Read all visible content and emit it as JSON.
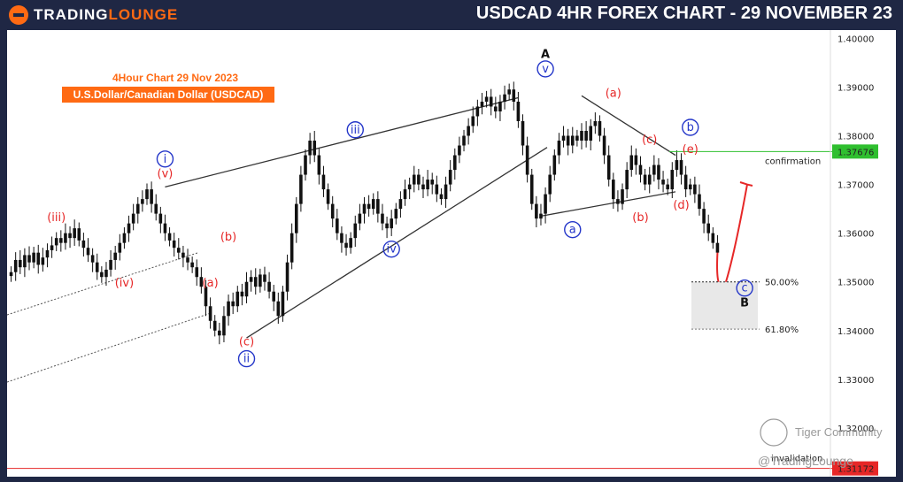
{
  "header": {
    "logo_left": "TRADING",
    "logo_right": "LOUNGE",
    "title": "USDCAD 4HR FOREX CHART - 29 NOVEMBER 23"
  },
  "annotation": {
    "line1": "4Hour Chart 29 Nov 2023",
    "line2": "U.S.Dollar/Canadian Dollar (USDCAD)"
  },
  "levels": {
    "confirmation_label": "confirmation",
    "confirmation_value": "1.37676",
    "fib_50": "50.00%",
    "fib_618": "61.80%",
    "invalidation_label": "invalidation",
    "invalidation_value": "1.31172"
  },
  "watermark": {
    "community": "Tiger Community",
    "handle": "@TradingLounge"
  },
  "colors": {
    "red": "#e62727",
    "blue": "#2436c9",
    "green": "#2fbf2f",
    "orange": "#ff6a13",
    "candle": "#111111"
  },
  "chart_data": {
    "type": "line",
    "title": "USDCAD 4HR FOREX CHART - 29 NOVEMBER 23",
    "ylim": [
      1.31,
      1.4
    ],
    "y_ticks": [
      "1.40000",
      "1.39000",
      "1.38000",
      "1.37000",
      "1.36000",
      "1.35000",
      "1.34000",
      "1.33000",
      "1.32000"
    ],
    "series": [
      {
        "values": [
          1.352,
          1.3545,
          1.353,
          1.3555,
          1.354,
          1.356,
          1.3535,
          1.355,
          1.3565,
          1.3575,
          1.359,
          1.358,
          1.36,
          1.359,
          1.361,
          1.3585,
          1.357,
          1.3555,
          1.354,
          1.352,
          1.351,
          1.3525,
          1.3545,
          1.356,
          1.358,
          1.36,
          1.362,
          1.364,
          1.366,
          1.367,
          1.369,
          1.366,
          1.364,
          1.362,
          1.36,
          1.3585,
          1.357,
          1.356,
          1.355,
          1.354,
          1.353,
          1.351,
          1.349,
          1.345,
          1.342,
          1.34,
          1.339,
          1.343,
          1.346,
          1.345,
          1.348,
          1.347,
          1.35,
          1.351,
          1.349,
          1.3515,
          1.35,
          1.348,
          1.346,
          1.343,
          1.348,
          1.354,
          1.36,
          1.366,
          1.372,
          1.376,
          1.379,
          1.376,
          1.372,
          1.369,
          1.366,
          1.363,
          1.36,
          1.358,
          1.357,
          1.359,
          1.362,
          1.364,
          1.366,
          1.365,
          1.367,
          1.364,
          1.362,
          1.361,
          1.363,
          1.365,
          1.367,
          1.369,
          1.37,
          1.372,
          1.37,
          1.369,
          1.371,
          1.37,
          1.368,
          1.367,
          1.37,
          1.373,
          1.376,
          1.378,
          1.38,
          1.382,
          1.384,
          1.386,
          1.387,
          1.388,
          1.386,
          1.385,
          1.387,
          1.3885,
          1.3895,
          1.387,
          1.383,
          1.378,
          1.372,
          1.366,
          1.363,
          1.364,
          1.368,
          1.372,
          1.376,
          1.379,
          1.38,
          1.378,
          1.38,
          1.379,
          1.381,
          1.379,
          1.382,
          1.383,
          1.38,
          1.376,
          1.371,
          1.367,
          1.366,
          1.369,
          1.373,
          1.376,
          1.374,
          1.372,
          1.37,
          1.372,
          1.374,
          1.371,
          1.37,
          1.369,
          1.373,
          1.375,
          1.372,
          1.369,
          1.37,
          1.368,
          1.365,
          1.362,
          1.36,
          1.358,
          1.356
        ]
      }
    ],
    "projection": [
      1.356,
      1.3495,
      1.351,
      1.356,
      1.364,
      1.37
    ],
    "wave_labels": [
      {
        "text": "(iii)",
        "color": "red",
        "price": 1.3625,
        "bar": 10
      },
      {
        "text": "(iv)",
        "color": "red",
        "price": 1.349,
        "bar": 25
      },
      {
        "text": "(v)",
        "color": "red",
        "price": 1.3715,
        "bar": 34
      },
      {
        "text": "i",
        "color": "blue",
        "price": 1.3745,
        "bar": 34,
        "circled": true
      },
      {
        "text": "(a)",
        "color": "red",
        "price": 1.349,
        "bar": 44
      },
      {
        "text": "(b)",
        "color": "red",
        "price": 1.3585,
        "bar": 48
      },
      {
        "text": "(c)",
        "color": "red",
        "price": 1.337,
        "bar": 52
      },
      {
        "text": "ii",
        "color": "blue",
        "price": 1.3335,
        "bar": 52,
        "circled": true
      },
      {
        "text": "iii",
        "color": "blue",
        "price": 1.3805,
        "bar": 76,
        "circled": true
      },
      {
        "text": "iv",
        "color": "blue",
        "price": 1.356,
        "bar": 84,
        "circled": true
      },
      {
        "text": "v",
        "color": "blue",
        "price": 1.393,
        "bar": 118,
        "circled": true
      },
      {
        "text": "A",
        "color": "black",
        "price": 1.396,
        "bar": 118
      },
      {
        "text": "(a)",
        "color": "red",
        "price": 1.388,
        "bar": 133
      },
      {
        "text": "a",
        "color": "blue",
        "price": 1.36,
        "bar": 124,
        "circled": true
      },
      {
        "text": "(b)",
        "color": "red",
        "price": 1.3625,
        "bar": 139
      },
      {
        "text": "(c)",
        "color": "red",
        "price": 1.3785,
        "bar": 141
      },
      {
        "text": "(d)",
        "color": "red",
        "price": 1.365,
        "bar": 148
      },
      {
        "text": "(e)",
        "color": "red",
        "price": 1.3765,
        "bar": 150
      },
      {
        "text": "b",
        "color": "blue",
        "price": 1.381,
        "bar": 150,
        "circled": true
      },
      {
        "text": "c",
        "color": "blue",
        "price": 1.348,
        "bar": 162,
        "circled": true
      },
      {
        "text": "B",
        "color": "black",
        "price": 1.345,
        "bar": 162
      }
    ],
    "levels": {
      "confirmation": 1.37676,
      "fib_50": 1.35,
      "fib_618": 1.3403,
      "invalidation": 1.3117
    }
  }
}
